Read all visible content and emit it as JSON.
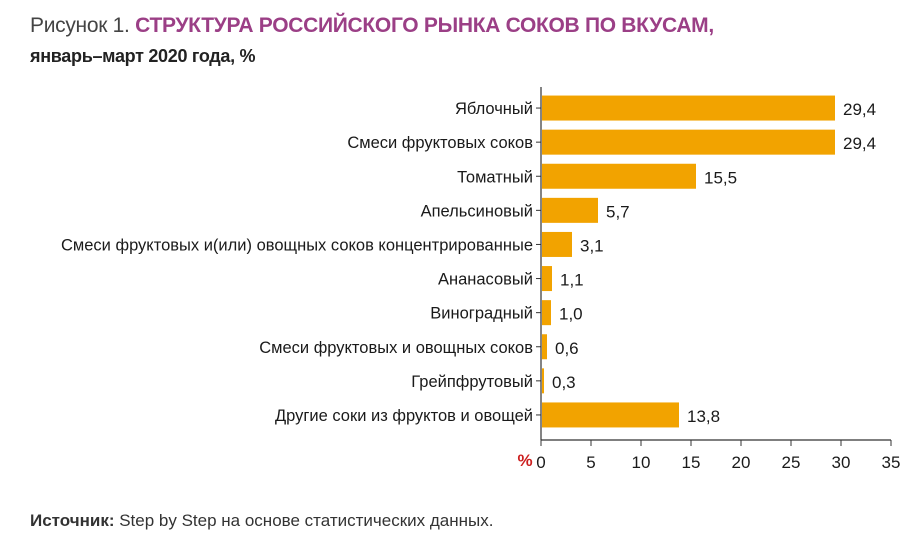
{
  "figure_label": "Рисунок 1.",
  "title": "СТРУКТУРА РОССИЙСКОГО РЫНКА СОКОВ ПО ВКУСАМ,",
  "subtitle": "январь–март 2020 года, %",
  "source_label": "Источник:",
  "source_text": " Step by Step на основе статистических данных.",
  "colors": {
    "bar": "#f2a300",
    "title": "#9b3f86",
    "axis_unit": "#cc1f1f"
  },
  "chart_data": {
    "type": "bar",
    "orientation": "horizontal",
    "categories": [
      "Яблочный",
      "Смеси фруктовых соков",
      "Томатный",
      "Апельсиновый",
      "Смеси фруктовых и(или) овощных соков концентрированные",
      "Ананасовый",
      "Виноградный",
      "Смеси фруктовых и овощных соков",
      "Грейпфрутовый",
      "Другие соки из фруктов и овощей"
    ],
    "values": [
      29.4,
      29.4,
      15.5,
      5.7,
      3.1,
      1.1,
      1.0,
      0.6,
      0.3,
      13.8
    ],
    "value_labels": [
      "29,4",
      "29,4",
      "15,5",
      "5,7",
      "3,1",
      "1,1",
      "1,0",
      "0,6",
      "0,3",
      "13,8"
    ],
    "xlim": [
      0,
      35
    ],
    "x_ticks": [
      0,
      5,
      10,
      15,
      20,
      25,
      30,
      35
    ],
    "x_unit_label": "%",
    "grid": false,
    "legend": "none"
  }
}
